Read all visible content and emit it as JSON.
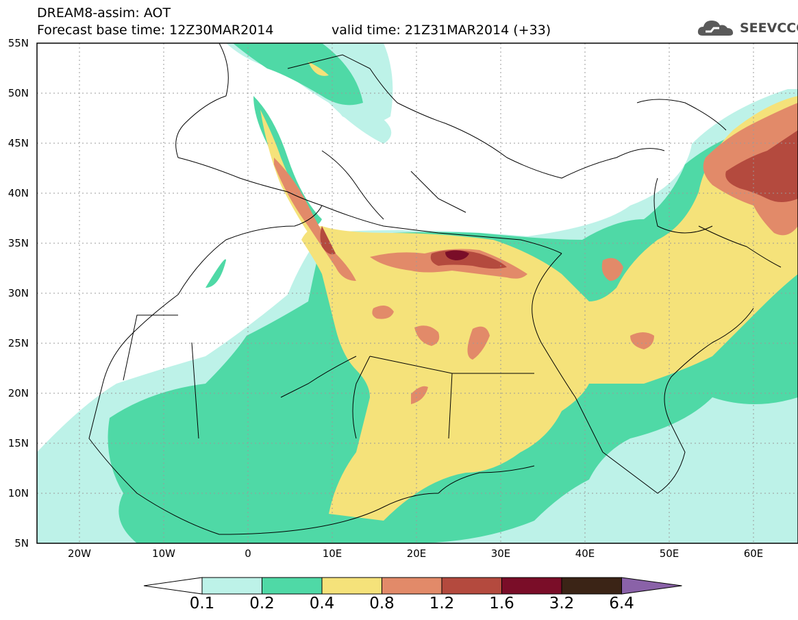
{
  "header": {
    "line1": "DREAM8-assim: AOT",
    "line2": "Forecast base time: 12Z30MAR2014",
    "valid": "valid time: 21Z31MAR2014 (+33)"
  },
  "logo": {
    "text": "SEEVCCC",
    "icon": "cloud-icon"
  },
  "map": {
    "lat_labels": [
      "55N",
      "50N",
      "45N",
      "40N",
      "35N",
      "30N",
      "25N",
      "20N",
      "15N",
      "10N",
      "5N"
    ],
    "lon_labels": [
      "20W",
      "10W",
      "0",
      "10E",
      "20E",
      "30E",
      "40E",
      "50E",
      "60E"
    ],
    "lon_range": [
      -25,
      65
    ],
    "lat_range": [
      5,
      55
    ]
  },
  "legend": {
    "labels": [
      "0.1",
      "0.2",
      "0.4",
      "0.8",
      "1.2",
      "1.6",
      "3.2",
      "6.4"
    ],
    "colors": [
      "#ffffff",
      "#bdf2e8",
      "#4fd9a6",
      "#f5e27a",
      "#e28a69",
      "#b44a3e",
      "#7a0d28",
      "#3b2416",
      "#8a62a8"
    ]
  }
}
